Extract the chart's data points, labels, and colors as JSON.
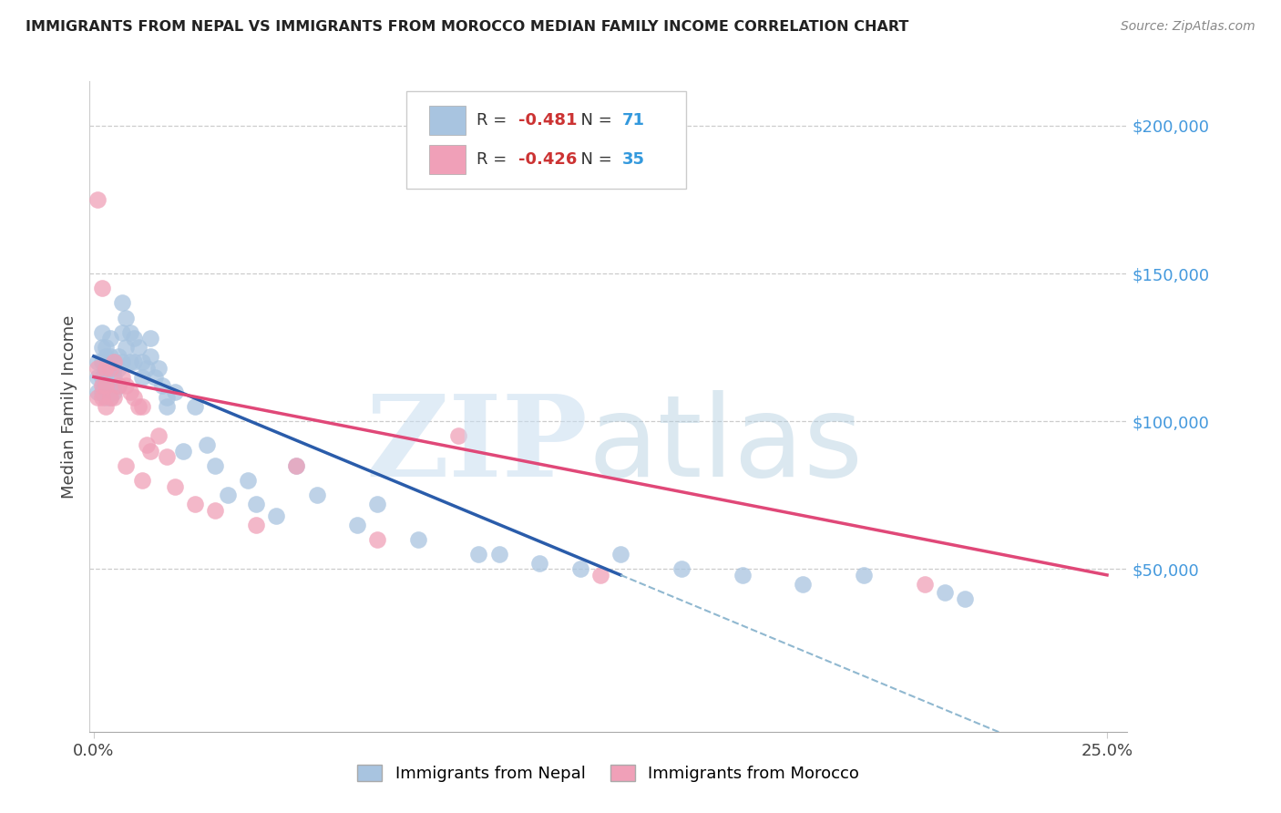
{
  "title": "IMMIGRANTS FROM NEPAL VS IMMIGRANTS FROM MOROCCO MEDIAN FAMILY INCOME CORRELATION CHART",
  "source": "Source: ZipAtlas.com",
  "ylabel": "Median Family Income",
  "xlim": [
    -0.001,
    0.255
  ],
  "ylim": [
    -5000,
    215000
  ],
  "nepal_color": "#a8c4e0",
  "morocco_color": "#f0a0b8",
  "nepal_line_color": "#2a5caa",
  "morocco_line_color": "#e04878",
  "dashed_line_color": "#90b8d0",
  "legend_r_nepal": "-0.481",
  "legend_n_nepal": "71",
  "legend_r_morocco": "-0.426",
  "legend_n_morocco": "35",
  "nepal_x": [
    0.001,
    0.001,
    0.001,
    0.002,
    0.002,
    0.002,
    0.002,
    0.002,
    0.003,
    0.003,
    0.003,
    0.003,
    0.003,
    0.003,
    0.004,
    0.004,
    0.004,
    0.004,
    0.004,
    0.005,
    0.005,
    0.005,
    0.005,
    0.006,
    0.006,
    0.006,
    0.007,
    0.007,
    0.007,
    0.008,
    0.008,
    0.009,
    0.009,
    0.01,
    0.01,
    0.011,
    0.012,
    0.012,
    0.013,
    0.014,
    0.014,
    0.015,
    0.016,
    0.017,
    0.018,
    0.018,
    0.02,
    0.022,
    0.025,
    0.028,
    0.03,
    0.033,
    0.038,
    0.04,
    0.045,
    0.05,
    0.055,
    0.065,
    0.07,
    0.08,
    0.095,
    0.1,
    0.11,
    0.12,
    0.13,
    0.145,
    0.16,
    0.175,
    0.19,
    0.21,
    0.215
  ],
  "nepal_y": [
    120000,
    115000,
    110000,
    130000,
    125000,
    120000,
    115000,
    110000,
    125000,
    122000,
    118000,
    115000,
    110000,
    108000,
    128000,
    122000,
    118000,
    112000,
    108000,
    120000,
    118000,
    115000,
    110000,
    122000,
    118000,
    112000,
    140000,
    130000,
    120000,
    135000,
    125000,
    130000,
    120000,
    128000,
    120000,
    125000,
    120000,
    115000,
    118000,
    128000,
    122000,
    115000,
    118000,
    112000,
    108000,
    105000,
    110000,
    90000,
    105000,
    92000,
    85000,
    75000,
    80000,
    72000,
    68000,
    85000,
    75000,
    65000,
    72000,
    60000,
    55000,
    55000,
    52000,
    50000,
    55000,
    50000,
    48000,
    45000,
    48000,
    42000,
    40000
  ],
  "morocco_x": [
    0.001,
    0.001,
    0.001,
    0.002,
    0.002,
    0.002,
    0.003,
    0.003,
    0.003,
    0.004,
    0.004,
    0.005,
    0.005,
    0.006,
    0.007,
    0.008,
    0.008,
    0.009,
    0.01,
    0.011,
    0.012,
    0.012,
    0.013,
    0.014,
    0.016,
    0.018,
    0.02,
    0.025,
    0.03,
    0.04,
    0.05,
    0.07,
    0.09,
    0.125,
    0.205
  ],
  "morocco_y": [
    175000,
    118000,
    108000,
    145000,
    112000,
    108000,
    118000,
    112000,
    105000,
    118000,
    108000,
    120000,
    108000,
    112000,
    115000,
    112000,
    85000,
    110000,
    108000,
    105000,
    105000,
    80000,
    92000,
    90000,
    95000,
    88000,
    78000,
    72000,
    70000,
    65000,
    85000,
    60000,
    95000,
    48000,
    45000
  ],
  "nepal_line_x0": 0.0,
  "nepal_line_y0": 122000,
  "nepal_line_x1": 0.13,
  "nepal_line_y1": 48000,
  "morocco_line_x0": 0.0,
  "morocco_line_y0": 115000,
  "morocco_line_x1": 0.25,
  "morocco_line_y1": 48000
}
